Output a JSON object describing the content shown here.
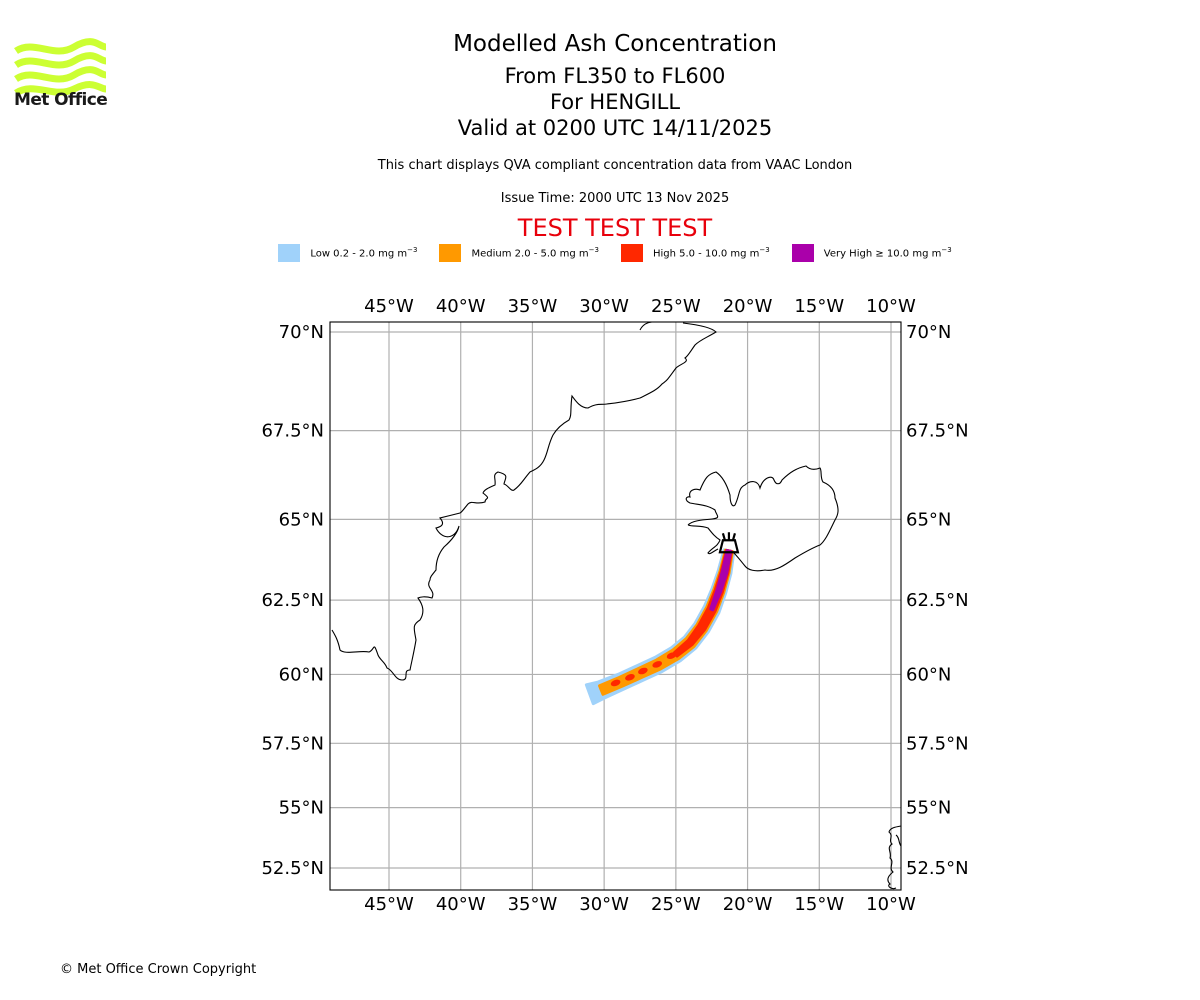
{
  "logo": {
    "name": "met-office-logo",
    "text": "Met Office",
    "color": "#ccff33"
  },
  "titles": {
    "main": "Modelled Ash Concentration",
    "levels": "From FL350 to FL600",
    "volcano": "For HENGILL",
    "valid": "Valid at 0200 UTC 14/11/2025"
  },
  "subtitle": "This chart displays QVA compliant concentration data from VAAC London",
  "issue_time": "Issue Time: 2000 UTC 13 Nov 2025",
  "test_banner": "TEST TEST TEST",
  "legend": [
    {
      "label": "Low 0.2 - 2.0 mg m",
      "exp": "−3",
      "color": "#a0d2fa"
    },
    {
      "label": "Medium 2.0 - 5.0 mg m",
      "exp": "−3",
      "color": "#ff9900"
    },
    {
      "label": "High 5.0 - 10.0 mg m",
      "exp": "−3",
      "color": "#ff2800"
    },
    {
      "label": "Very High ≥ 10.0 mg m",
      "exp": "−3",
      "color": "#aa00aa"
    }
  ],
  "chart_data": {
    "type": "map",
    "title": "Modelled Ash Concentration",
    "lon_range": [
      -49.2,
      -9.4
    ],
    "lat_range": [
      51.7,
      70.3
    ],
    "lon_ticks": [
      -45,
      -40,
      -35,
      -30,
      -25,
      -20,
      -15,
      -10
    ],
    "lon_tick_labels": [
      "45°W",
      "40°W",
      "35°W",
      "30°W",
      "25°W",
      "20°W",
      "15°W",
      "10°W"
    ],
    "lat_ticks": [
      70,
      67.5,
      65,
      62.5,
      60,
      57.5,
      55,
      52.5
    ],
    "lat_tick_labels": [
      "70°N",
      "67.5°N",
      "65°N",
      "62.5°N",
      "60°N",
      "57.5°N",
      "55°N",
      "52.5°N"
    ],
    "grid": true,
    "volcano": {
      "name": "HENGILL",
      "lon": -21.3,
      "lat": 64.1,
      "symbol": "volcano-icon"
    },
    "plume_centerline": [
      [
        -21.3,
        64.05
      ],
      [
        -21.6,
        63.4
      ],
      [
        -22.0,
        62.8
      ],
      [
        -22.5,
        62.2
      ],
      [
        -23.2,
        61.6
      ],
      [
        -24.0,
        61.1
      ],
      [
        -25.0,
        60.7
      ],
      [
        -26.2,
        60.35
      ],
      [
        -27.5,
        60.05
      ],
      [
        -28.8,
        59.75
      ],
      [
        -30.2,
        59.45
      ],
      [
        -31.0,
        59.3
      ]
    ],
    "plume_levels": [
      {
        "level": "Low",
        "color": "#a0d2fa",
        "halfwidth_deg": [
          0.35,
          0.45,
          0.5,
          0.55,
          0.55,
          0.55,
          0.55,
          0.55,
          0.55,
          0.55,
          0.6,
          0.7
        ]
      },
      {
        "level": "Medium",
        "color": "#ff9900",
        "halfwidth_deg": [
          0.25,
          0.32,
          0.36,
          0.38,
          0.38,
          0.38,
          0.36,
          0.34,
          0.33,
          0.32,
          0.32,
          0.0
        ]
      },
      {
        "level": "High",
        "color": "#ff2800",
        "halfwidth_deg": [
          0.18,
          0.24,
          0.26,
          0.26,
          0.25,
          0.2,
          0.15,
          0.0,
          0.0,
          0.0,
          0.0,
          0.0
        ]
      },
      {
        "level": "Very High",
        "color": "#aa00aa",
        "halfwidth_deg": [
          0.13,
          0.16,
          0.14,
          0.08,
          0.0,
          0.0,
          0.0,
          0.0,
          0.0,
          0.0,
          0.0,
          0.0
        ]
      }
    ],
    "high_blobs": [
      [
        -26.3,
        60.35
      ],
      [
        -27.3,
        60.12
      ],
      [
        -28.2,
        59.9
      ],
      [
        -29.2,
        59.7
      ],
      [
        -25.3,
        60.65
      ]
    ]
  },
  "copyright": "© Met Office Crown Copyright"
}
